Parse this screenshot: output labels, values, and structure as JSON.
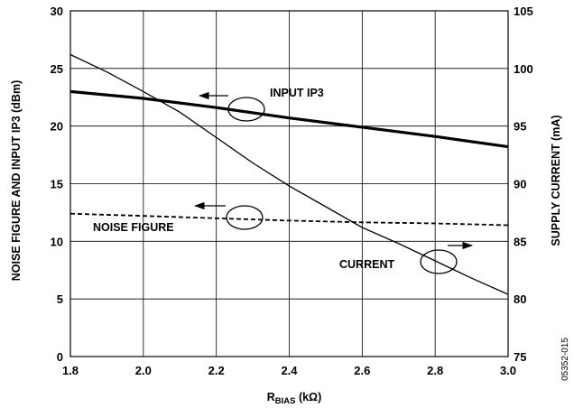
{
  "chart_data": {
    "type": "line",
    "xlabel": {
      "main": "R",
      "sub": "BIAS",
      "unit": " (kΩ)"
    },
    "ylabel_left": "NOISE FIGURE AND INPUT IP3 (dBm)",
    "ylabel_right": "SUPPLY CURRENT (mA)",
    "xlim": [
      1.8,
      3.0
    ],
    "ylim_left": [
      0,
      30
    ],
    "ylim_right": [
      75,
      105
    ],
    "x_ticks": [
      "1.8",
      "2.0",
      "2.2",
      "2.4",
      "2.6",
      "2.8",
      "3.0"
    ],
    "y_ticks_left": [
      "0",
      "5",
      "10",
      "15",
      "20",
      "25",
      "30"
    ],
    "y_ticks_right": [
      "75",
      "80",
      "85",
      "90",
      "95",
      "100",
      "105"
    ],
    "grid": true,
    "series": [
      {
        "name": "INPUT IP3",
        "axis": "left",
        "style": "solid-thick",
        "x": [
          1.8,
          2.0,
          2.2,
          2.4,
          2.6,
          2.8,
          3.0
        ],
        "y": [
          23.0,
          22.4,
          21.6,
          20.7,
          19.9,
          19.1,
          18.2
        ]
      },
      {
        "name": "NOISE FIGURE",
        "axis": "left",
        "style": "dashed",
        "x": [
          1.8,
          2.0,
          2.2,
          2.4,
          2.6,
          2.8,
          3.0
        ],
        "y": [
          12.4,
          12.2,
          12.0,
          11.8,
          11.65,
          11.55,
          11.4
        ]
      },
      {
        "name": "CURRENT",
        "axis": "right",
        "style": "solid-thin",
        "x": [
          1.8,
          1.9,
          2.0,
          2.1,
          2.2,
          2.3,
          2.4,
          2.5,
          2.6,
          2.7,
          2.8,
          2.9,
          3.0
        ],
        "y": [
          101.2,
          99.7,
          98.0,
          96.2,
          94.0,
          91.8,
          89.8,
          88.0,
          86.2,
          84.8,
          83.3,
          81.8,
          80.4
        ]
      }
    ],
    "annotations": [
      "INPUT IP3",
      "NOISE FIGURE",
      "CURRENT"
    ],
    "figure_id": "05352-015"
  }
}
